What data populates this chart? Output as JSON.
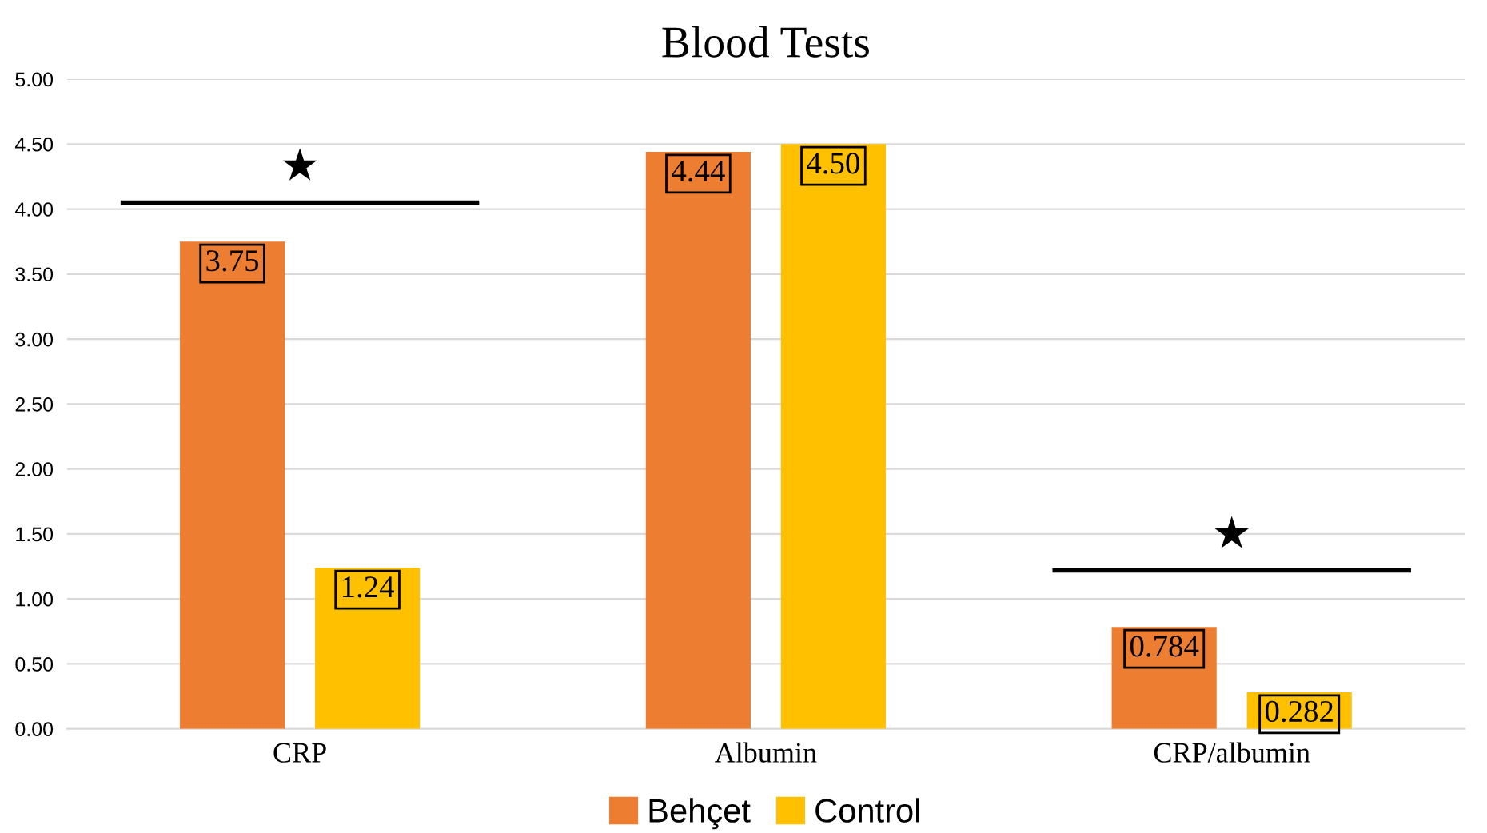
{
  "chart_data": {
    "type": "bar",
    "title": "Blood Tests",
    "categories": [
      "CRP",
      "Albumin",
      "CRP/albumin"
    ],
    "series": [
      {
        "name": "Behçet",
        "color": "#ed7d31",
        "values": [
          3.75,
          4.44,
          0.784
        ],
        "value_labels": [
          "3.75",
          "4.44",
          "0.784"
        ]
      },
      {
        "name": "Control",
        "color": "#ffc000",
        "values": [
          1.24,
          4.5,
          0.282
        ],
        "value_labels": [
          "1.24",
          "4.50",
          "0.282"
        ]
      }
    ],
    "ylim": [
      0,
      5
    ],
    "yticks": [
      {
        "value": 0,
        "label": "0.00"
      },
      {
        "value": 0.5,
        "label": "0.50"
      },
      {
        "value": 1,
        "label": "1.00"
      },
      {
        "value": 1.5,
        "label": "1.50"
      },
      {
        "value": 2,
        "label": "2.00"
      },
      {
        "value": 2.5,
        "label": "2.50"
      },
      {
        "value": 3,
        "label": "3.00"
      },
      {
        "value": 3.5,
        "label": "3.50"
      },
      {
        "value": 4,
        "label": "4.00"
      },
      {
        "value": 4.5,
        "label": "4.50"
      },
      {
        "value": 5,
        "label": "5.00"
      }
    ],
    "grid": "y",
    "legend": "bottom",
    "annotations": [
      "★",
      "★"
    ]
  }
}
